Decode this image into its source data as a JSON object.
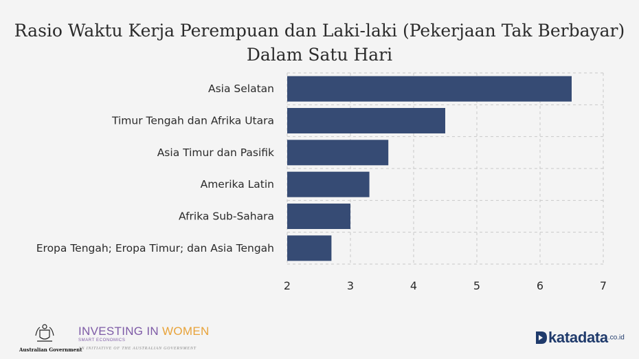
{
  "chart_data": {
    "type": "bar",
    "orientation": "horizontal",
    "title_line1": "Rasio Waktu Kerja Perempuan dan Laki-laki (Pekerjaan Tak Berbayar)",
    "title_line2": "Dalam Satu Hari",
    "categories": [
      "Asia Selatan",
      "Timur Tengah dan Afrika Utara",
      "Asia Timur dan Pasifik",
      "Amerika Latin",
      "Afrika Sub-Sahara",
      "Eropa Tengah; Eropa Timur; dan Asia Tengah"
    ],
    "values": [
      6.5,
      4.5,
      3.6,
      3.3,
      3.0,
      2.7
    ],
    "xlim": [
      2,
      7
    ],
    "xticks": [
      "2",
      "3",
      "4",
      "5",
      "6",
      "7"
    ],
    "grid": true,
    "bar_color": "#364b74"
  },
  "footer": {
    "gov_label": "Australian Government",
    "partner_word1": "INVESTING IN",
    "partner_word2": "WOMEN",
    "partner_sub": "SMART ECONOMICS",
    "partner_initiative": "AN INITIATIVE OF THE AUSTRALIAN GOVERNMENT",
    "brand_name": "katadata",
    "brand_tld": ".co.id"
  },
  "colors": {
    "background": "#f4f4f4",
    "brand": "#1f3a6b",
    "partner_purple": "#7d5aa6",
    "partner_orange": "#e8a33a"
  }
}
